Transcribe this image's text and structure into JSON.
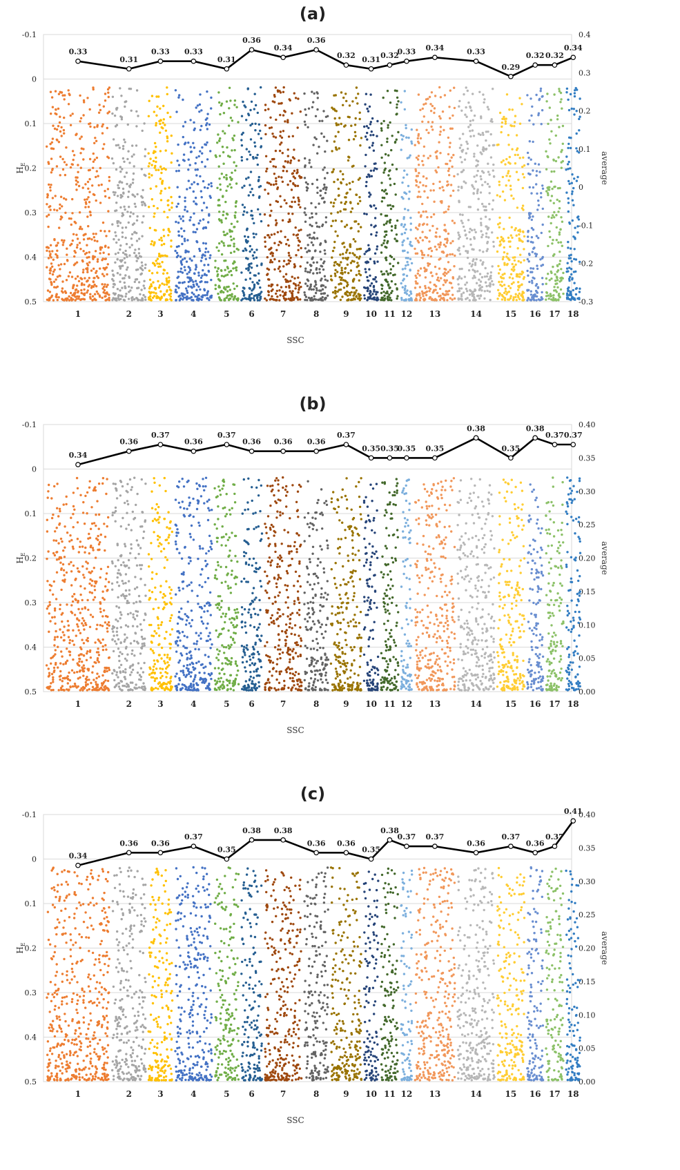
{
  "chart_data": [
    {
      "panel_label": "(a)",
      "type": "scatter",
      "xlabel": "SSC",
      "ylabel_left": "H",
      "ylabel_left_sub": "E",
      "ylabel_right": "average",
      "left_ticks": [
        "-0.1",
        "0",
        "0.1",
        "0.2",
        "0.3",
        "0.4",
        "0.5"
      ],
      "right_ticks": [
        "0.4",
        "0.3",
        "0.2",
        "0.1",
        "0",
        "-0.1",
        "-0.2",
        "-0.3"
      ],
      "categories": [
        "1",
        "2",
        "3",
        "4",
        "5",
        "6",
        "7",
        "8",
        "9",
        "10",
        "11",
        "12",
        "13",
        "14",
        "15",
        "16",
        "17",
        "18"
      ],
      "series": [
        {
          "values": [
            0.33,
            0.31,
            0.33,
            0.33,
            0.31,
            0.36,
            0.34,
            0.36,
            0.32,
            0.31,
            0.32,
            0.33,
            0.34,
            0.33,
            0.29,
            0.32,
            0.32,
            0.34
          ],
          "labels": [
            "0.33",
            "0.31",
            "0.33",
            "0.33",
            "0.31",
            "0.36",
            "0.34",
            "0.36",
            "0.32",
            "0.31",
            "0.32",
            "0.33",
            "0.34",
            "0.33",
            "0.29",
            "0.32",
            "0.32",
            "0.34"
          ]
        }
      ],
      "right_range": [
        -0.3,
        0.4
      ],
      "left_range": [
        -0.1,
        0.5
      ],
      "point_range": [
        0.0,
        0.5
      ]
    },
    {
      "panel_label": "(b)",
      "type": "scatter",
      "xlabel": "SSC",
      "ylabel_left": "H",
      "ylabel_left_sub": "E",
      "ylabel_right": "average",
      "left_ticks": [
        "-0.1",
        "0",
        "0.1",
        "0.2",
        "0.3",
        "0.4",
        "0.5"
      ],
      "right_ticks": [
        "0.40",
        "0.35",
        "0.30",
        "0.25",
        "0.20",
        "0.15",
        "0.10",
        "0.05",
        "0.00"
      ],
      "categories": [
        "1",
        "2",
        "3",
        "4",
        "5",
        "6",
        "7",
        "8",
        "9",
        "10",
        "11",
        "12",
        "13",
        "14",
        "15",
        "16",
        "17",
        "18"
      ],
      "series": [
        {
          "values": [
            0.34,
            0.36,
            0.37,
            0.36,
            0.37,
            0.36,
            0.36,
            0.36,
            0.37,
            0.35,
            0.35,
            0.35,
            0.35,
            0.38,
            0.35,
            0.38,
            0.37,
            0.37
          ],
          "labels": [
            "0.34",
            "0.36",
            "0.37",
            "0.36",
            "0.37",
            "0.36",
            "0.36",
            "0.36",
            "0.37",
            "0.35",
            "0.35",
            "0.35",
            "0.35",
            "0.38",
            "0.35",
            "0.38",
            "0.37",
            "0.37"
          ]
        }
      ],
      "right_range": [
        0.0,
        0.4
      ],
      "left_range": [
        -0.1,
        0.5
      ],
      "point_range": [
        0.0,
        0.5
      ]
    },
    {
      "panel_label": "(c)",
      "type": "scatter",
      "xlabel": "SSC",
      "ylabel_left": "H",
      "ylabel_left_sub": "E",
      "ylabel_right": "average",
      "left_ticks": [
        "-0.1",
        "0",
        "0.1",
        "0.2",
        "0.3",
        "0.4",
        "0.5"
      ],
      "right_ticks": [
        "0.40",
        "0.35",
        "0.30",
        "0.25",
        "0.20",
        "0.15",
        "0.10",
        "0.05",
        "0.00"
      ],
      "categories": [
        "1",
        "2",
        "3",
        "4",
        "5",
        "6",
        "7",
        "8",
        "9",
        "10",
        "11",
        "12",
        "13",
        "14",
        "15",
        "16",
        "17",
        "18"
      ],
      "series": [
        {
          "values": [
            0.34,
            0.36,
            0.36,
            0.37,
            0.35,
            0.38,
            0.38,
            0.36,
            0.36,
            0.35,
            0.38,
            0.37,
            0.37,
            0.36,
            0.37,
            0.36,
            0.37,
            0.41
          ],
          "labels": [
            "0.34",
            "0.36",
            "0.36",
            "0.37",
            "0.35",
            "0.38",
            "0.38",
            "0.36",
            "0.36",
            "0.35",
            "0.38",
            "0.37",
            "0.37",
            "0.36",
            "0.37",
            "0.36",
            "0.37",
            "0.41"
          ]
        }
      ],
      "right_range": [
        0.0,
        0.42
      ],
      "left_range": [
        -0.1,
        0.5
      ],
      "point_range": [
        0.0,
        0.5
      ]
    }
  ],
  "ssc_band_widths": [
    1.0,
    0.55,
    0.4,
    0.6,
    0.4,
    0.35,
    0.6,
    0.4,
    0.5,
    0.25,
    0.3,
    0.2,
    0.65,
    0.6,
    0.45,
    0.28,
    0.3,
    0.25
  ],
  "ssc_colors": [
    "#ed7d31",
    "#a5a5a5",
    "#ffc000",
    "#4472c4",
    "#70ad47",
    "#255e91",
    "#9e480e",
    "#636363",
    "#997300",
    "#264478",
    "#43682b",
    "#7cafdd",
    "#f1975a",
    "#b7b7b7",
    "#ffcd33",
    "#698ed0",
    "#8cc168",
    "#327dc2"
  ],
  "line_color": "#000000",
  "grid_color": "#d9d9d9"
}
